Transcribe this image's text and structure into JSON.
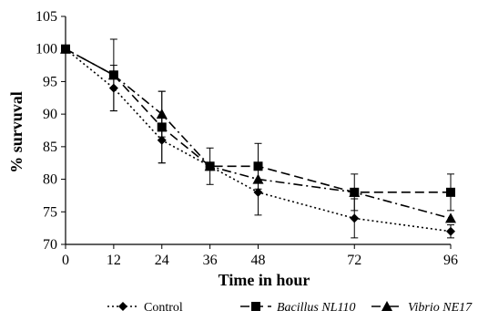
{
  "chart_data": {
    "type": "line",
    "xlabel": "Time in hour",
    "ylabel": "% survuval",
    "x": [
      0,
      12,
      24,
      36,
      48,
      72,
      96
    ],
    "x_tick_labels": [
      "0",
      "12",
      "24",
      "36",
      "48",
      "72",
      "96"
    ],
    "y_ticks": [
      70,
      75,
      80,
      85,
      90,
      95,
      100,
      105
    ],
    "ylim": [
      70,
      105
    ],
    "grid": false,
    "legend_position": "bottom",
    "series": [
      {
        "name": "Control",
        "italic": false,
        "marker": "diamond",
        "dash": "dotted",
        "values": [
          100,
          94,
          86,
          82,
          78,
          74,
          72
        ],
        "errors": [
          0,
          3.5,
          3.5,
          0,
          3.5,
          3,
          1
        ]
      },
      {
        "name": "Bacillus NL110",
        "italic": true,
        "marker": "square",
        "dash": "long-dash",
        "values": [
          100,
          96,
          88,
          82,
          82,
          78,
          78
        ],
        "errors": [
          0,
          5.5,
          5.5,
          2.8,
          3.5,
          2.8,
          2.8
        ]
      },
      {
        "name": "Vibrio NE17",
        "italic": true,
        "marker": "triangle",
        "dash": "dash-dot",
        "values": [
          100,
          96,
          90,
          82,
          80,
          78,
          74
        ],
        "errors": [
          0,
          0,
          3.5,
          0,
          0,
          0,
          0
        ]
      }
    ]
  }
}
